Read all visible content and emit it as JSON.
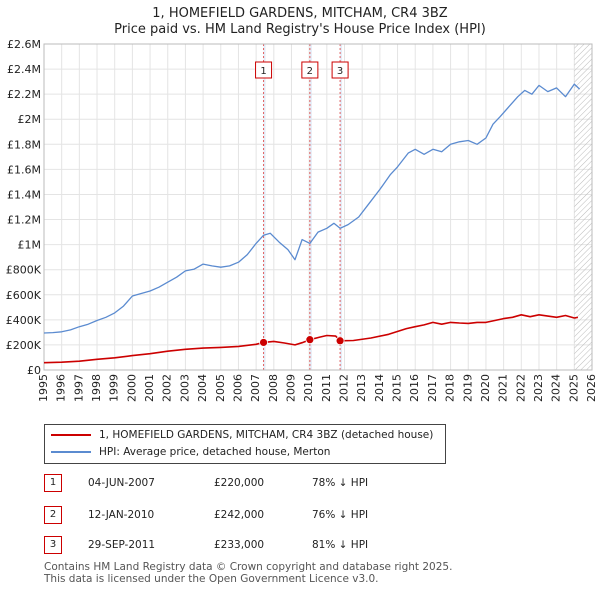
{
  "title_line1": "1, HOMEFIELD GARDENS, MITCHAM, CR4 3BZ",
  "title_line2": "Price paid vs. HM Land Registry's House Price Index (HPI)",
  "chart_data": {
    "type": "line",
    "xlim": [
      1995,
      2026
    ],
    "ylim": [
      0,
      2600000
    ],
    "x_ticks": [
      1995,
      1996,
      1997,
      1998,
      1999,
      2000,
      2001,
      2002,
      2003,
      2004,
      2005,
      2006,
      2007,
      2008,
      2009,
      2010,
      2011,
      2012,
      2013,
      2014,
      2015,
      2016,
      2017,
      2018,
      2019,
      2020,
      2021,
      2022,
      2023,
      2024,
      2025,
      2026
    ],
    "y_ticks": [
      0,
      200000,
      400000,
      600000,
      800000,
      1000000,
      1200000,
      1400000,
      1600000,
      1800000,
      2000000,
      2200000,
      2400000,
      2600000
    ],
    "y_tick_labels": [
      "£0",
      "£200K",
      "£400K",
      "£600K",
      "£800K",
      "£1M",
      "£1.2M",
      "£1.4M",
      "£1.6M",
      "£1.8M",
      "£2M",
      "£2.2M",
      "£2.4M",
      "£2.6M"
    ],
    "grid": true,
    "series": [
      {
        "name": "1, HOMEFIELD GARDENS, MITCHAM, CR4 3BZ (detached house)",
        "color": "#cc0000",
        "x": [
          1995.0,
          1996.0,
          1997.0,
          1998.0,
          1999.0,
          2000.0,
          2001.0,
          2002.0,
          2003.0,
          2004.0,
          2005.0,
          2006.0,
          2007.0,
          2007.42,
          2008.0,
          2008.6,
          2009.2,
          2009.6,
          2010.04,
          2010.6,
          2011.0,
          2011.5,
          2011.75,
          2012.5,
          2013.5,
          2014.5,
          2015.5,
          2016.0,
          2016.5,
          2017.0,
          2017.5,
          2018.0,
          2018.5,
          2019.0,
          2019.5,
          2020.0,
          2020.5,
          2021.0,
          2021.5,
          2022.0,
          2022.5,
          2023.0,
          2023.5,
          2024.0,
          2024.5,
          2025.0,
          2025.2
        ],
        "values": [
          58000,
          62000,
          70000,
          85000,
          97000,
          115000,
          130000,
          150000,
          165000,
          175000,
          180000,
          188000,
          205000,
          220000,
          228000,
          215000,
          200000,
          218000,
          242000,
          262000,
          275000,
          270000,
          233000,
          235000,
          255000,
          285000,
          330000,
          345000,
          360000,
          380000,
          365000,
          380000,
          375000,
          372000,
          380000,
          380000,
          395000,
          410000,
          420000,
          440000,
          425000,
          440000,
          430000,
          420000,
          435000,
          415000,
          420000
        ]
      },
      {
        "name": "HPI: Average price, detached house, Merton",
        "color": "#5b8bd0",
        "x": [
          1995.0,
          1995.5,
          1996.0,
          1996.5,
          1997.0,
          1997.5,
          1998.0,
          1998.5,
          1999.0,
          1999.5,
          2000.0,
          2000.5,
          2001.0,
          2001.5,
          2002.0,
          2002.5,
          2003.0,
          2003.5,
          2004.0,
          2004.5,
          2005.0,
          2005.5,
          2006.0,
          2006.5,
          2007.0,
          2007.42,
          2007.8,
          2008.3,
          2008.8,
          2009.2,
          2009.6,
          2010.04,
          2010.5,
          2011.0,
          2011.4,
          2011.75,
          2012.2,
          2012.8,
          2013.4,
          2014.0,
          2014.6,
          2015.0,
          2015.6,
          2016.0,
          2016.5,
          2017.0,
          2017.5,
          2018.0,
          2018.5,
          2019.0,
          2019.5,
          2020.0,
          2020.4,
          2020.8,
          2021.3,
          2021.8,
          2022.2,
          2022.6,
          2023.0,
          2023.5,
          2024.0,
          2024.5,
          2025.0,
          2025.3
        ],
        "values": [
          295000,
          298000,
          305000,
          320000,
          345000,
          365000,
          395000,
          420000,
          455000,
          510000,
          590000,
          610000,
          630000,
          660000,
          700000,
          740000,
          790000,
          805000,
          845000,
          830000,
          820000,
          830000,
          860000,
          920000,
          1010000,
          1075000,
          1090000,
          1020000,
          960000,
          880000,
          1040000,
          1010000,
          1100000,
          1130000,
          1170000,
          1130000,
          1160000,
          1220000,
          1330000,
          1440000,
          1560000,
          1620000,
          1730000,
          1760000,
          1720000,
          1760000,
          1740000,
          1800000,
          1820000,
          1830000,
          1800000,
          1850000,
          1960000,
          2020000,
          2100000,
          2180000,
          2230000,
          2200000,
          2270000,
          2220000,
          2250000,
          2180000,
          2280000,
          2240000
        ]
      }
    ],
    "transactions": [
      {
        "id": "1",
        "date": "04-JUN-2007",
        "x": 2007.42,
        "price": 220000,
        "price_label": "£220,000",
        "hpi": "78% ↓ HPI"
      },
      {
        "id": "2",
        "date": "12-JAN-2010",
        "x": 2010.04,
        "price": 242000,
        "price_label": "£242,000",
        "hpi": "76% ↓ HPI"
      },
      {
        "id": "3",
        "date": "29-SEP-2011",
        "x": 2011.75,
        "price": 233000,
        "price_label": "£233,000",
        "hpi": "81% ↓ HPI"
      }
    ],
    "hatch_from": 2025.0
  },
  "legend": {
    "property_label": "1, HOMEFIELD GARDENS, MITCHAM, CR4 3BZ (detached house)",
    "hpi_label": "HPI: Average price, detached house, Merton"
  },
  "footer_line1": "Contains HM Land Registry data © Crown copyright and database right 2025.",
  "footer_line2": "This data is licensed under the Open Government Licence v3.0."
}
